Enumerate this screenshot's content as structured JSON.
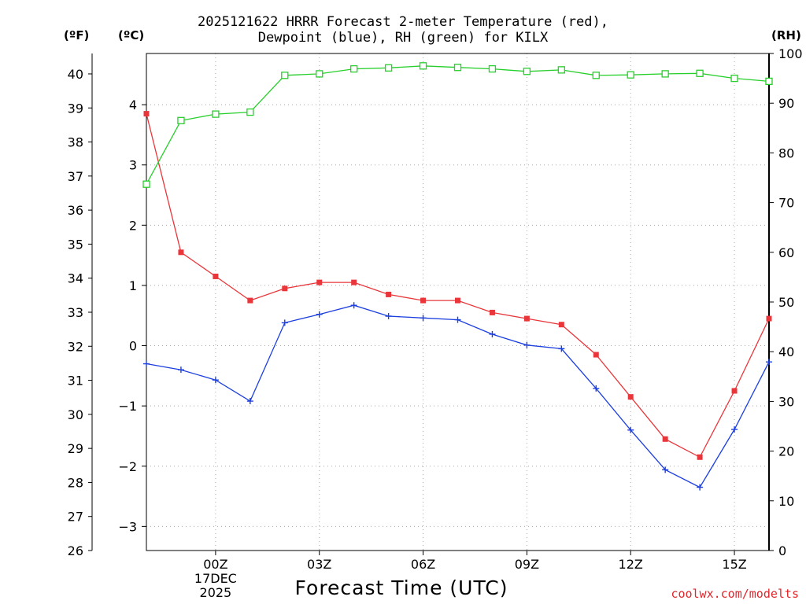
{
  "chart_data": {
    "type": "line",
    "title_lines": [
      "2025121622 HRRR Forecast 2-meter Temperature (red),",
      "Dewpoint (blue), RH (green) for KILX"
    ],
    "xlabel": "Forecast Time (UTC)",
    "x_hours": [
      -2,
      -1,
      0,
      1,
      2,
      3,
      4,
      5,
      6,
      7,
      8,
      9,
      10,
      11,
      12,
      13,
      14,
      15,
      16
    ],
    "x_ticks": [
      {
        "hour": 0,
        "label": "00Z",
        "sublabels": [
          "17DEC",
          "2025"
        ]
      },
      {
        "hour": 3,
        "label": "03Z"
      },
      {
        "hour": 6,
        "label": "06Z"
      },
      {
        "hour": 9,
        "label": "09Z"
      },
      {
        "hour": 12,
        "label": "12Z"
      },
      {
        "hour": 15,
        "label": "15Z"
      }
    ],
    "y_celsius": {
      "unit_label": "(ºC)",
      "range": [
        -3.4,
        4.85
      ],
      "ticks": [
        -3,
        -2,
        -1,
        0,
        1,
        2,
        3,
        4
      ]
    },
    "y_fahrenheit": {
      "unit_label": "(ºF)",
      "range": [
        26,
        40.6
      ],
      "ticks": [
        26,
        27,
        28,
        29,
        30,
        31,
        32,
        33,
        34,
        35,
        36,
        37,
        38,
        39,
        40
      ]
    },
    "y_rh": {
      "unit_label": "(RH)",
      "range": [
        0,
        100
      ],
      "ticks": [
        0,
        10,
        20,
        30,
        40,
        50,
        60,
        70,
        80,
        90,
        100
      ]
    },
    "series": [
      {
        "name": "Temperature",
        "color": "#e8363a",
        "marker": "filled-square",
        "axis": "celsius",
        "values": [
          3.85,
          1.55,
          1.15,
          0.75,
          0.95,
          1.05,
          1.05,
          0.85,
          0.75,
          0.75,
          0.55,
          0.45,
          0.35,
          -0.15,
          -0.85,
          -1.55,
          -1.85,
          -0.75,
          0.45
        ]
      },
      {
        "name": "Dewpoint",
        "color": "#1c3fe0",
        "marker": "plus",
        "axis": "celsius",
        "values": [
          -0.3,
          -0.4,
          -0.57,
          -0.92,
          0.38,
          0.52,
          0.67,
          0.49,
          0.46,
          0.43,
          0.19,
          0.01,
          -0.05,
          -0.71,
          -1.4,
          -2.06,
          -2.35,
          -1.39,
          -0.27
        ]
      },
      {
        "name": "RH",
        "color": "#27cf2b",
        "marker": "open-square",
        "axis": "rh",
        "values": [
          73.7,
          86.5,
          87.8,
          88.2,
          95.6,
          95.9,
          96.9,
          97.1,
          97.5,
          97.2,
          96.9,
          96.4,
          96.7,
          95.6,
          95.7,
          95.9,
          96.0,
          95.0,
          94.4
        ]
      }
    ]
  },
  "credit": "coolwx.com/modelts"
}
